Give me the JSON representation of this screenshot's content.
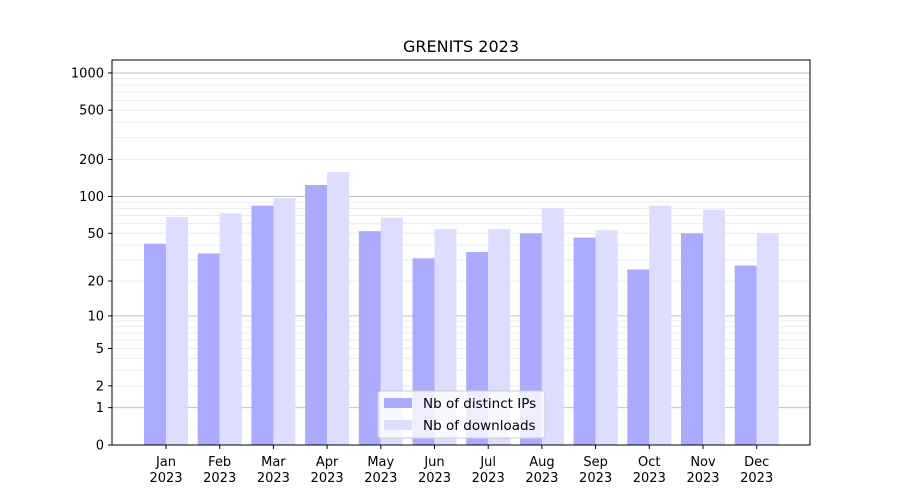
{
  "chart_data": {
    "type": "bar",
    "title": "GRENITS 2023",
    "xlabel": "",
    "ylabel": "",
    "yscale": "symlog",
    "ylim": [
      0,
      1270
    ],
    "yticks": [
      0,
      1,
      2,
      5,
      10,
      20,
      50,
      100,
      200,
      500,
      1000
    ],
    "grid": true,
    "legend_position": "bottom-center",
    "categories": [
      "Jan\n2023",
      "Feb\n2023",
      "Mar\n2023",
      "Apr\n2023",
      "May\n2023",
      "Jun\n2023",
      "Jul\n2023",
      "Aug\n2023",
      "Sep\n2023",
      "Oct\n2023",
      "Nov\n2023",
      "Dec\n2023"
    ],
    "series": [
      {
        "name": "Nb of distinct IPs",
        "color": "#aaaaff",
        "values": [
          41,
          34,
          84,
          124,
          52,
          31,
          35,
          50,
          46,
          25,
          50,
          27
        ]
      },
      {
        "name": "Nb of downloads",
        "color": "#ddddff",
        "values": [
          68,
          73,
          97,
          158,
          67,
          54,
          54,
          80,
          53,
          84,
          78,
          50
        ]
      }
    ]
  }
}
